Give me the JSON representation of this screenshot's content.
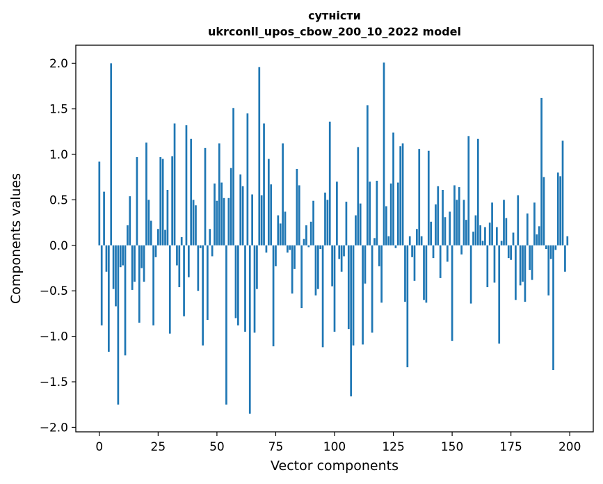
{
  "chart_data": {
    "type": "bar",
    "title_line1": "сутністи",
    "title_line2": "ukrconll_upos_cbow_200_10_2022 model",
    "xlabel": "Vector components",
    "ylabel": "Components values",
    "xlim": [
      -10,
      210
    ],
    "ylim": [
      -2.05,
      2.2
    ],
    "xticks": [
      0,
      25,
      50,
      75,
      100,
      125,
      150,
      175,
      200
    ],
    "yticks": [
      -2.0,
      -1.5,
      -1.0,
      -0.5,
      0.0,
      0.5,
      1.0,
      1.5,
      2.0
    ],
    "ytick_labels": [
      "−2.0",
      "−1.5",
      "−1.0",
      "−0.5",
      "0.0",
      "0.5",
      "1.0",
      "1.5",
      "2.0"
    ],
    "grid": false,
    "bar_color": "#1f77b4",
    "values": [
      0.92,
      -0.88,
      0.59,
      -0.29,
      -1.17,
      2.0,
      -0.48,
      -0.67,
      -1.75,
      -0.24,
      -0.22,
      -1.21,
      0.22,
      0.54,
      -0.49,
      -0.4,
      0.97,
      -0.85,
      -0.25,
      -0.4,
      1.13,
      0.5,
      0.27,
      -0.88,
      -0.13,
      0.18,
      0.97,
      0.95,
      0.17,
      0.61,
      -0.97,
      0.98,
      1.34,
      -0.22,
      -0.46,
      0.09,
      -0.78,
      1.32,
      -0.35,
      1.17,
      0.5,
      0.44,
      -0.5,
      -0.03,
      -1.1,
      1.07,
      -0.82,
      0.18,
      -0.12,
      0.68,
      0.49,
      1.12,
      0.69,
      0.52,
      -1.75,
      0.52,
      0.85,
      1.51,
      -0.8,
      -0.88,
      0.78,
      0.65,
      -0.95,
      1.45,
      -1.85,
      0.56,
      -0.96,
      -0.48,
      1.96,
      0.55,
      1.34,
      -0.08,
      0.95,
      0.67,
      -1.11,
      -0.23,
      0.33,
      0.24,
      1.12,
      0.37,
      -0.08,
      -0.05,
      -0.53,
      -0.26,
      0.84,
      0.66,
      -0.69,
      0.07,
      0.22,
      -0.02,
      0.26,
      0.49,
      -0.55,
      -0.48,
      -0.04,
      -1.12,
      0.58,
      0.5,
      1.36,
      -0.45,
      -0.95,
      0.7,
      -0.15,
      -0.29,
      -0.12,
      0.48,
      -0.92,
      -1.66,
      -1.1,
      0.33,
      1.08,
      0.46,
      -1.09,
      -0.42,
      1.54,
      0.7,
      -0.96,
      0.08,
      0.71,
      -0.23,
      -0.63,
      2.01,
      0.43,
      0.1,
      0.68,
      1.24,
      -0.03,
      0.69,
      1.09,
      1.12,
      -0.62,
      -1.34,
      0.1,
      -0.13,
      -0.39,
      0.18,
      1.06,
      0.1,
      -0.6,
      -0.63,
      1.04,
      0.26,
      -0.14,
      0.45,
      0.65,
      -0.36,
      0.61,
      0.31,
      -0.18,
      0.37,
      -1.05,
      0.66,
      0.5,
      0.64,
      -0.1,
      0.5,
      0.28,
      1.2,
      -0.64,
      0.15,
      0.33,
      1.17,
      0.22,
      0.05,
      0.2,
      -0.46,
      0.25,
      0.47,
      -0.41,
      0.2,
      -1.08,
      0.05,
      0.5,
      0.3,
      -0.14,
      -0.16,
      0.14,
      -0.6,
      0.55,
      -0.44,
      -0.4,
      -0.62,
      0.35,
      -0.27,
      -0.38,
      0.47,
      0.12,
      0.21,
      1.62,
      0.75,
      -0.04,
      -0.55,
      -0.15,
      -1.37,
      -0.05,
      0.8,
      0.76,
      1.15,
      -0.29,
      0.1
    ]
  }
}
